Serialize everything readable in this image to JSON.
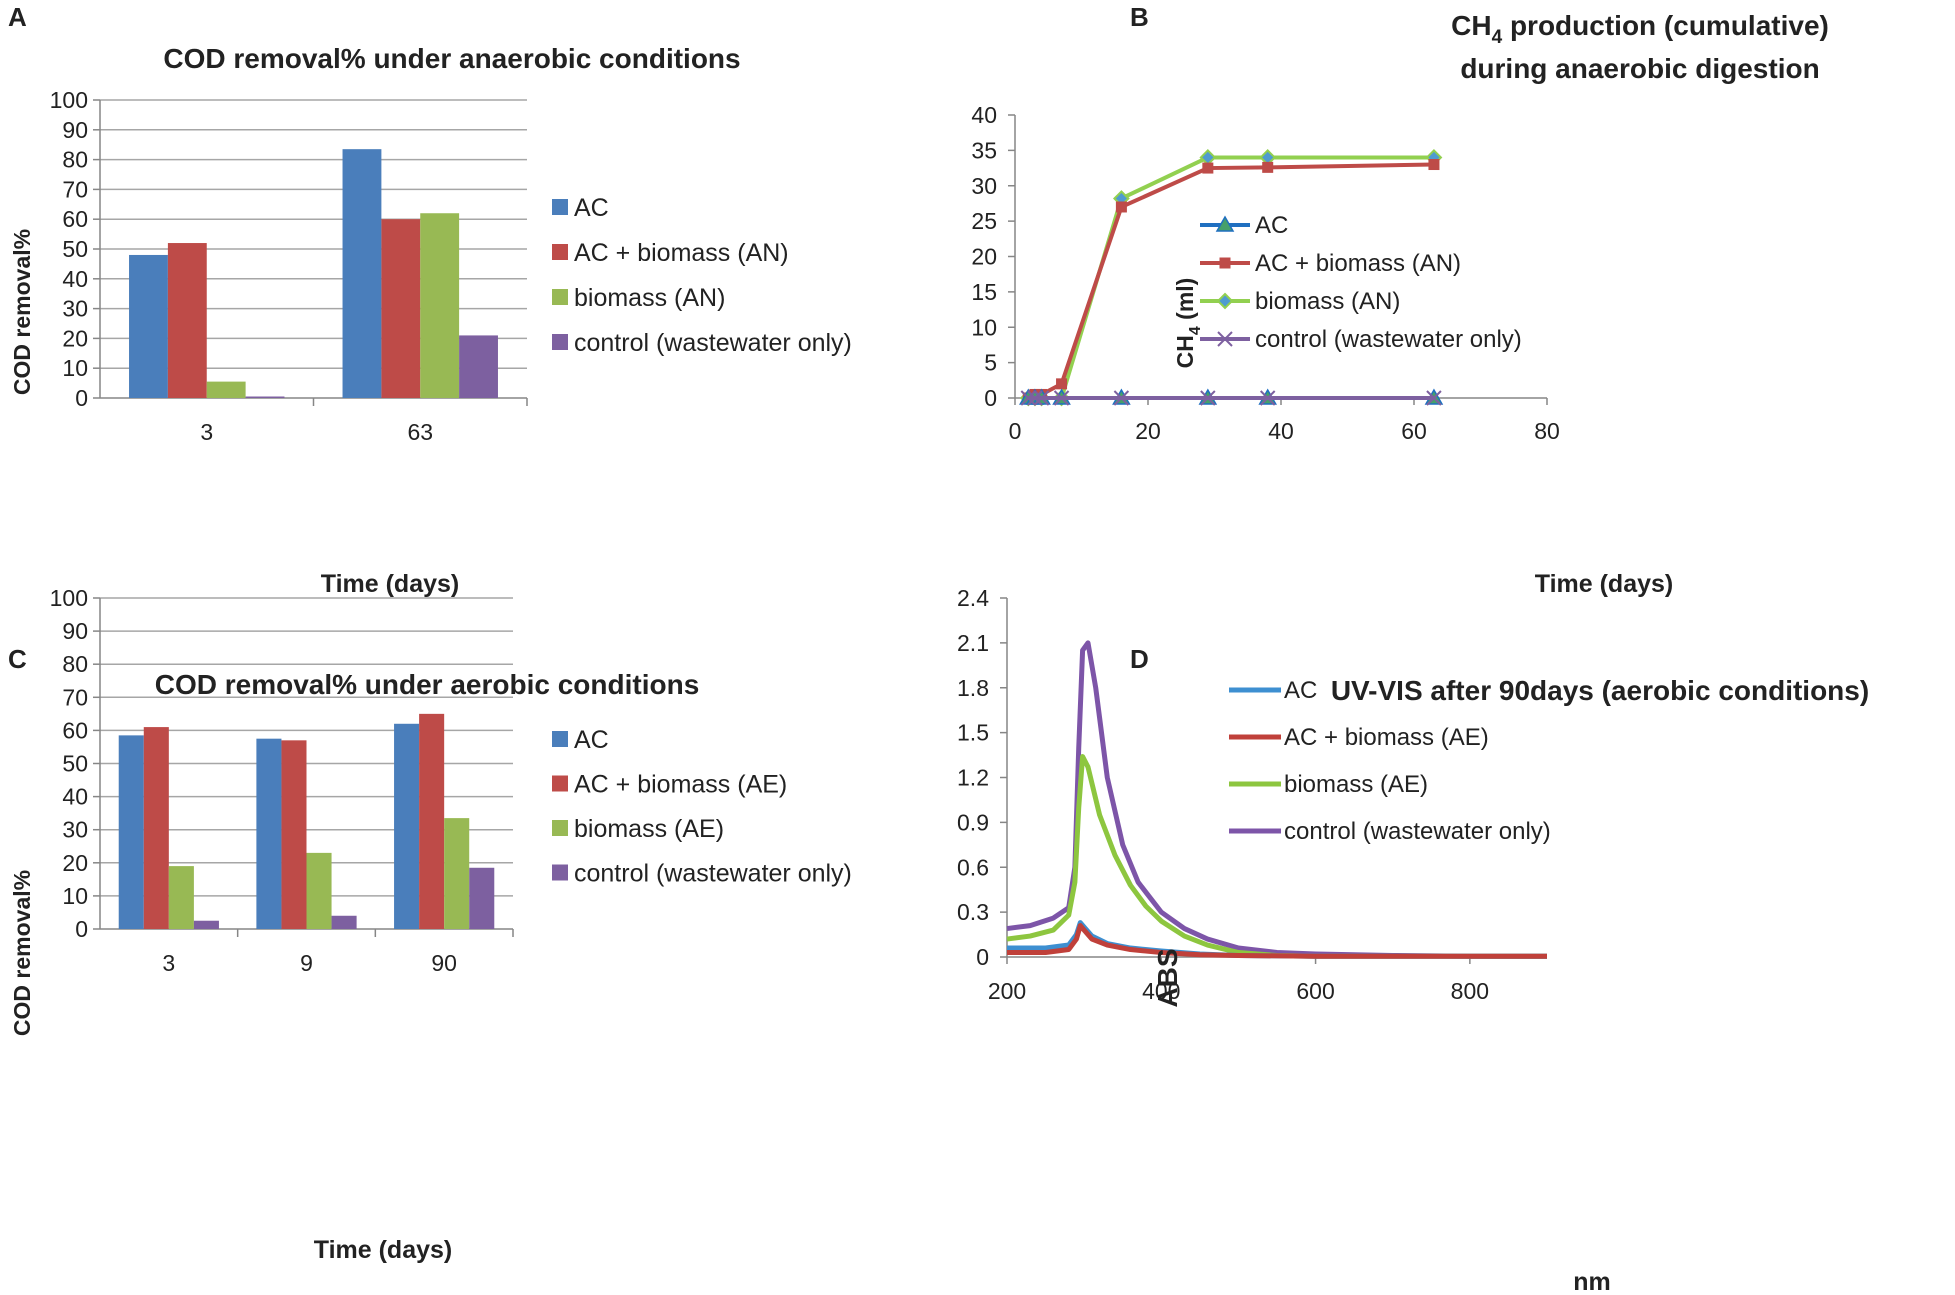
{
  "panel_letters": [
    "A",
    "B",
    "C",
    "D"
  ],
  "colors": {
    "ac": "#4a7ebb",
    "ac_biomass": "#be4b48",
    "biomass": "#98b954",
    "control": "#7d60a0",
    "grid": "#a6a6a6",
    "axis": "#868686",
    "text": "#222222"
  },
  "chart_data": [
    {
      "panel": "A",
      "type": "bar",
      "title": "COD removal% under anaerobic conditions",
      "xlabel": "Time (days)",
      "ylabel": "COD  removal%",
      "categories": [
        "3",
        "63"
      ],
      "ylim": [
        0,
        100
      ],
      "yticks": [
        0,
        10,
        20,
        30,
        40,
        50,
        60,
        70,
        80,
        90,
        100
      ],
      "grid": true,
      "legend_position": "right",
      "series": [
        {
          "name": "AC",
          "values": [
            48,
            83.5
          ]
        },
        {
          "name": "AC + biomass (AN)",
          "values": [
            52,
            60
          ]
        },
        {
          "name": "biomass (AN)",
          "values": [
            5.5,
            62
          ]
        },
        {
          "name": "control (wastewater only)",
          "values": [
            0.5,
            21
          ]
        }
      ]
    },
    {
      "panel": "B",
      "type": "line",
      "title_parts": [
        "CH",
        "4",
        " production (cumulative)"
      ],
      "title_line2": "during anaerobic digestion",
      "xlabel": "Time (days)",
      "ylabel_parts": [
        "CH",
        "4",
        " (ml)"
      ],
      "xlim": [
        0,
        80
      ],
      "ylim": [
        0,
        40
      ],
      "xticks": [
        0,
        20,
        40,
        60,
        80
      ],
      "yticks": [
        0,
        5,
        10,
        15,
        20,
        25,
        30,
        35,
        40
      ],
      "grid": false,
      "legend_position": "center",
      "series": [
        {
          "name": "AC",
          "marker": "triangle",
          "x": [
            2,
            3,
            4,
            7,
            16,
            29,
            38,
            63
          ],
          "y": [
            0,
            0,
            0,
            0,
            0,
            0,
            0,
            0
          ]
        },
        {
          "name": "AC + biomass (AN)",
          "marker": "square",
          "x": [
            2,
            3,
            4,
            7,
            16,
            29,
            38,
            63
          ],
          "y": [
            0,
            0.5,
            0.5,
            2,
            27,
            32.5,
            32.6,
            33
          ]
        },
        {
          "name": "biomass (AN)",
          "marker": "diamond",
          "x": [
            2,
            3,
            4,
            7,
            16,
            29,
            38,
            63
          ],
          "y": [
            0,
            0,
            0,
            0,
            28.2,
            34,
            34,
            34
          ]
        },
        {
          "name": "control (wastewater only)",
          "marker": "x",
          "x": [
            2,
            3,
            4,
            7,
            16,
            29,
            38,
            63
          ],
          "y": [
            0,
            0,
            0,
            0,
            0,
            0,
            0,
            0
          ]
        }
      ]
    },
    {
      "panel": "C",
      "type": "bar",
      "title": "COD removal% under aerobic conditions",
      "xlabel": "Time (days)",
      "ylabel": "COD  removal%",
      "categories": [
        "3",
        "9",
        "90"
      ],
      "ylim": [
        0,
        100
      ],
      "yticks": [
        0,
        10,
        20,
        30,
        40,
        50,
        60,
        70,
        80,
        90,
        100
      ],
      "grid": true,
      "legend_position": "right",
      "series": [
        {
          "name": "AC",
          "values": [
            58.5,
            57.5,
            62
          ]
        },
        {
          "name": "AC + biomass (AE)",
          "values": [
            61,
            57,
            65
          ]
        },
        {
          "name": "biomass (AE)",
          "values": [
            19,
            23,
            33.5
          ]
        },
        {
          "name": "control (wastewater only)",
          "values": [
            2.5,
            4,
            18.5
          ]
        }
      ]
    },
    {
      "panel": "D",
      "type": "line",
      "title": "UV-VIS after 90days  (aerobic conditions)",
      "xlabel": "nm",
      "ylabel": "ABS",
      "xlim": [
        200,
        900
      ],
      "ylim": [
        0,
        2.4
      ],
      "xticks": [
        200,
        400,
        600,
        800
      ],
      "yticks": [
        0,
        0.3,
        0.6,
        0.9,
        1.2,
        1.5,
        1.8,
        2.1,
        2.4
      ],
      "ytick_labels": [
        "0",
        "0.3",
        "0.6",
        "0.9",
        "1.2",
        "1.5",
        "1.8",
        "2.1",
        "2.4"
      ],
      "grid": false,
      "legend_position": "center-right",
      "series": [
        {
          "name": "AC",
          "x": [
            200,
            250,
            280,
            290,
            295,
            300,
            310,
            330,
            360,
            400,
            450,
            500,
            600,
            700,
            800,
            900
          ],
          "y": [
            0.06,
            0.06,
            0.08,
            0.15,
            0.23,
            0.2,
            0.14,
            0.09,
            0.06,
            0.04,
            0.02,
            0.01,
            0.005,
            0.005,
            0.005,
            0.005
          ]
        },
        {
          "name": "AC + biomass (AE)",
          "x": [
            200,
            250,
            280,
            290,
            295,
            300,
            310,
            330,
            360,
            400,
            450,
            500,
            600,
            700,
            800,
            900
          ],
          "y": [
            0.03,
            0.03,
            0.05,
            0.12,
            0.21,
            0.18,
            0.12,
            0.08,
            0.05,
            0.03,
            0.015,
            0.01,
            0.005,
            0.005,
            0.005,
            0.005
          ]
        },
        {
          "name": "biomass (AE)",
          "x": [
            200,
            230,
            260,
            280,
            288,
            293,
            298,
            305,
            320,
            340,
            360,
            380,
            400,
            430,
            460,
            500,
            550,
            600,
            700,
            800,
            900
          ],
          "y": [
            0.12,
            0.14,
            0.18,
            0.28,
            0.5,
            1.0,
            1.34,
            1.27,
            0.95,
            0.68,
            0.48,
            0.34,
            0.24,
            0.14,
            0.08,
            0.03,
            0.01,
            0.005,
            0.005,
            0.005,
            0.005
          ]
        },
        {
          "name": "control (wastewater only)",
          "x": [
            200,
            230,
            260,
            280,
            288,
            293,
            298,
            305,
            315,
            330,
            350,
            370,
            400,
            430,
            460,
            500,
            550,
            600,
            700,
            800,
            900
          ],
          "y": [
            0.19,
            0.21,
            0.26,
            0.33,
            0.6,
            1.4,
            2.05,
            2.1,
            1.8,
            1.2,
            0.75,
            0.5,
            0.3,
            0.19,
            0.12,
            0.06,
            0.03,
            0.02,
            0.01,
            0.005,
            0.005
          ]
        }
      ]
    }
  ]
}
